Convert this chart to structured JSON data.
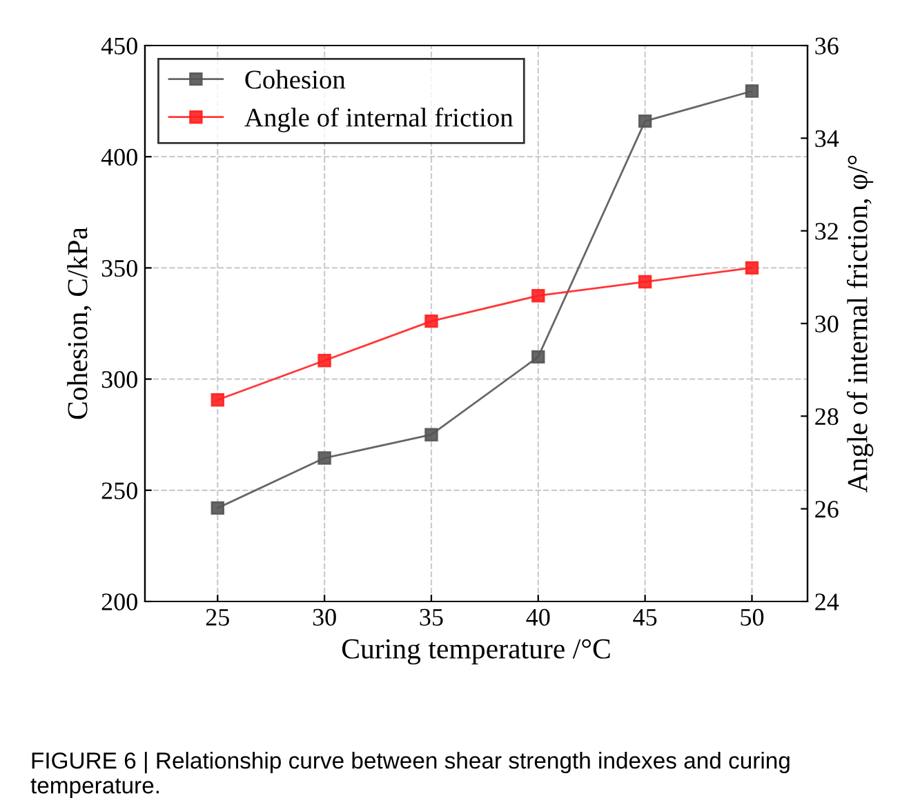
{
  "chart_data": {
    "type": "line",
    "xlabel": "Curing temperature /°C",
    "ylabel": "Cohesion, C/kPa",
    "y2label": "Angle of internal friction, φ/°",
    "x": [
      25,
      30,
      35,
      40,
      45,
      50
    ],
    "series": [
      {
        "name": "Cohesion",
        "color": "#555555",
        "values": [
          242,
          264.5,
          275,
          310,
          416,
          429.5
        ]
      },
      {
        "name": "Angle of internal friction",
        "color": "#ff2020",
        "axis": "y2",
        "values": [
          28.35,
          29.2,
          30.05,
          30.6,
          30.9,
          31.2
        ]
      }
    ],
    "xlim": [
      21.6,
      52.6
    ],
    "xticks": [
      25,
      30,
      35,
      40,
      45,
      50
    ],
    "ylim": [
      200,
      450
    ],
    "yticks": [
      200,
      250,
      300,
      350,
      400,
      450
    ],
    "y2lim": [
      24,
      36
    ],
    "y2ticks": [
      24,
      26,
      28,
      30,
      32,
      34,
      36
    ],
    "grid": true,
    "legend": "top left",
    "marker": "square",
    "line_style": "solid",
    "annotations": [
      "FIGURE 6 | Relationship curve between shear strength indexes and curing temperature."
    ]
  }
}
